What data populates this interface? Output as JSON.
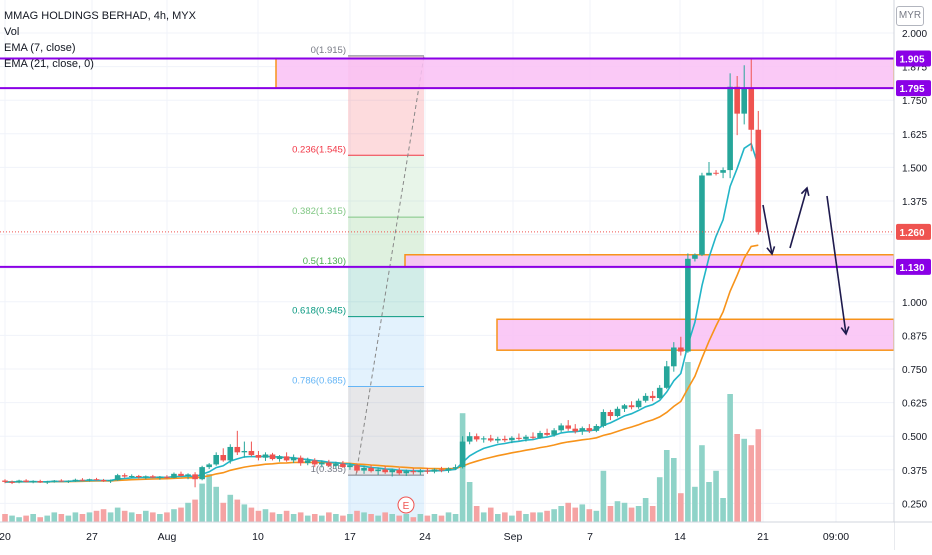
{
  "legend": {
    "title": "MMAG HOLDINGS BERHAD, 4h, MYX",
    "vol": "Vol",
    "ema7": "EMA (7, close)",
    "ema21": "EMA (21, close, 0)"
  },
  "currency": "MYR",
  "colors": {
    "up": "#26a69a",
    "down": "#ef5350",
    "up_vol": "#8fd3c8",
    "down_vol": "#f5a3a3",
    "ema7": "#22b5c7",
    "ema21": "#f7931a",
    "level_line": "#8a00e6",
    "zone_fill": "#f9c0f5",
    "zone_border": "#f7931a",
    "arrow": "#1e1a4d"
  },
  "chart_data": {
    "type": "candlestick",
    "symbol": "MMAG HOLDINGS BERHAD",
    "interval": "4h",
    "exchange": "MYX",
    "currency": "MYR",
    "y_ticks": [
      "2.000",
      "1.875",
      "1.750",
      "1.625",
      "1.500",
      "1.375",
      "1.250",
      "1.125",
      "1.000",
      "0.875",
      "0.750",
      "0.625",
      "0.500",
      "0.375",
      "0.250"
    ],
    "x_ticks": [
      "20",
      "27",
      "Aug",
      "10",
      "17",
      "24",
      "Sep",
      "7",
      "14",
      "21",
      "09:00"
    ],
    "price_labels": [
      "1.905",
      "1.795",
      "1.260",
      "1.130"
    ],
    "fib_levels": [
      {
        "label": "0(1.915)",
        "price": 1.915,
        "color": "#787b86"
      },
      {
        "label": "0.236(1.545)",
        "price": 1.545,
        "color": "#f23645"
      },
      {
        "label": "0.382(1.315)",
        "price": 1.315,
        "color": "#81c784"
      },
      {
        "label": "0.5(1.130)",
        "price": 1.13,
        "color": "#4caf50"
      },
      {
        "label": "0.618(0.945)",
        "price": 0.945,
        "color": "#089981"
      },
      {
        "label": "0.786(0.685)",
        "price": 0.685,
        "color": "#64b5f6"
      },
      {
        "label": "1(0.355)",
        "price": 0.355,
        "color": "#787b86"
      }
    ],
    "horizontal_levels": [
      1.905,
      1.795,
      1.13
    ],
    "zones": [
      {
        "top": 1.905,
        "bottom": 1.795
      },
      {
        "top": 1.175,
        "bottom": 1.13
      },
      {
        "top": 0.935,
        "bottom": 0.82
      }
    ],
    "event_marker": "E",
    "candles": [
      [
        0.335,
        0.34,
        0.325,
        0.33
      ],
      [
        0.33,
        0.335,
        0.322,
        0.328
      ],
      [
        0.328,
        0.338,
        0.325,
        0.335
      ],
      [
        0.335,
        0.34,
        0.328,
        0.33
      ],
      [
        0.33,
        0.336,
        0.325,
        0.333
      ],
      [
        0.333,
        0.338,
        0.326,
        0.328
      ],
      [
        0.328,
        0.334,
        0.322,
        0.331
      ],
      [
        0.331,
        0.337,
        0.327,
        0.335
      ],
      [
        0.335,
        0.34,
        0.33,
        0.332
      ],
      [
        0.332,
        0.336,
        0.326,
        0.334
      ],
      [
        0.334,
        0.342,
        0.33,
        0.338
      ],
      [
        0.338,
        0.344,
        0.333,
        0.336
      ],
      [
        0.336,
        0.342,
        0.331,
        0.34
      ],
      [
        0.34,
        0.345,
        0.335,
        0.337
      ],
      [
        0.337,
        0.341,
        0.33,
        0.333
      ],
      [
        0.333,
        0.339,
        0.326,
        0.336
      ],
      [
        0.336,
        0.36,
        0.334,
        0.355
      ],
      [
        0.355,
        0.362,
        0.345,
        0.35
      ],
      [
        0.35,
        0.358,
        0.344,
        0.352
      ],
      [
        0.352,
        0.356,
        0.342,
        0.348
      ],
      [
        0.348,
        0.354,
        0.34,
        0.351
      ],
      [
        0.351,
        0.356,
        0.344,
        0.346
      ],
      [
        0.346,
        0.352,
        0.338,
        0.349
      ],
      [
        0.349,
        0.355,
        0.342,
        0.345
      ],
      [
        0.345,
        0.365,
        0.343,
        0.36
      ],
      [
        0.36,
        0.368,
        0.35,
        0.352
      ],
      [
        0.352,
        0.362,
        0.34,
        0.358
      ],
      [
        0.358,
        0.366,
        0.31,
        0.34
      ],
      [
        0.34,
        0.39,
        0.336,
        0.385
      ],
      [
        0.385,
        0.4,
        0.378,
        0.395
      ],
      [
        0.395,
        0.44,
        0.39,
        0.43
      ],
      [
        0.43,
        0.455,
        0.405,
        0.41
      ],
      [
        0.41,
        0.47,
        0.398,
        0.46
      ],
      [
        0.46,
        0.52,
        0.43,
        0.44
      ],
      [
        0.44,
        0.48,
        0.42,
        0.445
      ],
      [
        0.445,
        0.48,
        0.425,
        0.43
      ],
      [
        0.43,
        0.445,
        0.41,
        0.42
      ],
      [
        0.42,
        0.44,
        0.408,
        0.432
      ],
      [
        0.432,
        0.438,
        0.41,
        0.415
      ],
      [
        0.415,
        0.43,
        0.405,
        0.425
      ],
      [
        0.425,
        0.44,
        0.405,
        0.41
      ],
      [
        0.41,
        0.432,
        0.4,
        0.42
      ],
      [
        0.42,
        0.428,
        0.39,
        0.4
      ],
      [
        0.4,
        0.42,
        0.392,
        0.41
      ],
      [
        0.41,
        0.418,
        0.385,
        0.395
      ],
      [
        0.395,
        0.41,
        0.384,
        0.402
      ],
      [
        0.402,
        0.412,
        0.386,
        0.39
      ],
      [
        0.39,
        0.405,
        0.38,
        0.398
      ],
      [
        0.398,
        0.408,
        0.382,
        0.385
      ],
      [
        0.385,
        0.4,
        0.375,
        0.392
      ],
      [
        0.392,
        0.398,
        0.365,
        0.372
      ],
      [
        0.372,
        0.39,
        0.36,
        0.382
      ],
      [
        0.382,
        0.392,
        0.365,
        0.37
      ],
      [
        0.37,
        0.384,
        0.356,
        0.376
      ],
      [
        0.376,
        0.388,
        0.36,
        0.366
      ],
      [
        0.366,
        0.38,
        0.35,
        0.374
      ],
      [
        0.374,
        0.382,
        0.356,
        0.362
      ],
      [
        0.362,
        0.376,
        0.352,
        0.37
      ],
      [
        0.37,
        0.38,
        0.358,
        0.366
      ],
      [
        0.366,
        0.378,
        0.356,
        0.372
      ],
      [
        0.372,
        0.382,
        0.36,
        0.368
      ],
      [
        0.368,
        0.38,
        0.362,
        0.376
      ],
      [
        0.376,
        0.386,
        0.366,
        0.372
      ],
      [
        0.372,
        0.384,
        0.364,
        0.38
      ],
      [
        0.38,
        0.395,
        0.375,
        0.385
      ],
      [
        0.385,
        0.5,
        0.38,
        0.48
      ],
      [
        0.48,
        0.515,
        0.47,
        0.5
      ],
      [
        0.5,
        0.51,
        0.48,
        0.488
      ],
      [
        0.488,
        0.5,
        0.476,
        0.492
      ],
      [
        0.492,
        0.505,
        0.478,
        0.484
      ],
      [
        0.484,
        0.498,
        0.474,
        0.49
      ],
      [
        0.49,
        0.502,
        0.478,
        0.485
      ],
      [
        0.485,
        0.5,
        0.474,
        0.494
      ],
      [
        0.494,
        0.51,
        0.484,
        0.49
      ],
      [
        0.49,
        0.505,
        0.48,
        0.498
      ],
      [
        0.498,
        0.514,
        0.488,
        0.494
      ],
      [
        0.494,
        0.52,
        0.49,
        0.512
      ],
      [
        0.512,
        0.528,
        0.5,
        0.505
      ],
      [
        0.505,
        0.53,
        0.498,
        0.522
      ],
      [
        0.522,
        0.548,
        0.515,
        0.54
      ],
      [
        0.54,
        0.56,
        0.52,
        0.528
      ],
      [
        0.528,
        0.545,
        0.51,
        0.518
      ],
      [
        0.518,
        0.536,
        0.505,
        0.53
      ],
      [
        0.53,
        0.545,
        0.512,
        0.52
      ],
      [
        0.52,
        0.545,
        0.515,
        0.538
      ],
      [
        0.538,
        0.6,
        0.532,
        0.59
      ],
      [
        0.59,
        0.598,
        0.56,
        0.575
      ],
      [
        0.575,
        0.61,
        0.57,
        0.602
      ],
      [
        0.602,
        0.62,
        0.59,
        0.615
      ],
      [
        0.615,
        0.63,
        0.6,
        0.608
      ],
      [
        0.608,
        0.64,
        0.602,
        0.632
      ],
      [
        0.632,
        0.66,
        0.625,
        0.65
      ],
      [
        0.65,
        0.668,
        0.63,
        0.642
      ],
      [
        0.642,
        0.69,
        0.638,
        0.68
      ],
      [
        0.68,
        0.78,
        0.675,
        0.76
      ],
      [
        0.76,
        0.85,
        0.74,
        0.83
      ],
      [
        0.83,
        0.87,
        0.8,
        0.815
      ],
      [
        0.815,
        1.18,
        0.81,
        1.16
      ],
      [
        1.16,
        1.18,
        1.15,
        1.175
      ],
      [
        1.175,
        1.48,
        1.17,
        1.47
      ],
      [
        1.47,
        1.52,
        1.47,
        1.48
      ],
      [
        1.48,
        1.49,
        1.47,
        1.478
      ],
      [
        1.48,
        1.5,
        1.46,
        1.49
      ],
      [
        1.49,
        1.85,
        1.46,
        1.8
      ],
      [
        1.8,
        1.84,
        1.62,
        1.7
      ],
      [
        1.7,
        1.88,
        1.66,
        1.795
      ],
      [
        1.795,
        1.905,
        1.56,
        1.64
      ],
      [
        1.64,
        1.71,
        1.25,
        1.26
      ]
    ],
    "volume": [
      [
        0.05,
        "down"
      ],
      [
        0.04,
        "up"
      ],
      [
        0.03,
        "up"
      ],
      [
        0.04,
        "down"
      ],
      [
        0.05,
        "up"
      ],
      [
        0.03,
        "down"
      ],
      [
        0.04,
        "up"
      ],
      [
        0.06,
        "up"
      ],
      [
        0.05,
        "down"
      ],
      [
        0.04,
        "up"
      ],
      [
        0.06,
        "up"
      ],
      [
        0.05,
        "down"
      ],
      [
        0.06,
        "up"
      ],
      [
        0.07,
        "down"
      ],
      [
        0.08,
        "down"
      ],
      [
        0.06,
        "up"
      ],
      [
        0.09,
        "up"
      ],
      [
        0.07,
        "down"
      ],
      [
        0.06,
        "up"
      ],
      [
        0.05,
        "down"
      ],
      [
        0.07,
        "up"
      ],
      [
        0.06,
        "down"
      ],
      [
        0.05,
        "up"
      ],
      [
        0.06,
        "down"
      ],
      [
        0.08,
        "up"
      ],
      [
        0.09,
        "down"
      ],
      [
        0.12,
        "up"
      ],
      [
        0.14,
        "down"
      ],
      [
        0.24,
        "up"
      ],
      [
        0.3,
        "up"
      ],
      [
        0.22,
        "up"
      ],
      [
        0.12,
        "down"
      ],
      [
        0.17,
        "up"
      ],
      [
        0.14,
        "down"
      ],
      [
        0.11,
        "up"
      ],
      [
        0.09,
        "down"
      ],
      [
        0.07,
        "down"
      ],
      [
        0.08,
        "up"
      ],
      [
        0.06,
        "down"
      ],
      [
        0.05,
        "up"
      ],
      [
        0.07,
        "down"
      ],
      [
        0.05,
        "up"
      ],
      [
        0.06,
        "down"
      ],
      [
        0.04,
        "up"
      ],
      [
        0.05,
        "down"
      ],
      [
        0.04,
        "up"
      ],
      [
        0.06,
        "down"
      ],
      [
        0.05,
        "up"
      ],
      [
        0.04,
        "down"
      ],
      [
        0.05,
        "up"
      ],
      [
        0.07,
        "down"
      ],
      [
        0.06,
        "up"
      ],
      [
        0.05,
        "down"
      ],
      [
        0.04,
        "up"
      ],
      [
        0.06,
        "down"
      ],
      [
        0.05,
        "up"
      ],
      [
        0.04,
        "down"
      ],
      [
        0.05,
        "up"
      ],
      [
        0.03,
        "down"
      ],
      [
        0.05,
        "up"
      ],
      [
        0.04,
        "down"
      ],
      [
        0.05,
        "up"
      ],
      [
        0.04,
        "down"
      ],
      [
        0.06,
        "up"
      ],
      [
        0.05,
        "up"
      ],
      [
        0.68,
        "up"
      ],
      [
        0.25,
        "up"
      ],
      [
        0.1,
        "down"
      ],
      [
        0.06,
        "up"
      ],
      [
        0.09,
        "down"
      ],
      [
        0.05,
        "up"
      ],
      [
        0.06,
        "down"
      ],
      [
        0.04,
        "up"
      ],
      [
        0.07,
        "down"
      ],
      [
        0.05,
        "up"
      ],
      [
        0.06,
        "down"
      ],
      [
        0.06,
        "up"
      ],
      [
        0.07,
        "down"
      ],
      [
        0.08,
        "up"
      ],
      [
        0.1,
        "up"
      ],
      [
        0.12,
        "down"
      ],
      [
        0.09,
        "down"
      ],
      [
        0.11,
        "up"
      ],
      [
        0.08,
        "down"
      ],
      [
        0.07,
        "up"
      ],
      [
        0.32,
        "up"
      ],
      [
        0.1,
        "down"
      ],
      [
        0.13,
        "up"
      ],
      [
        0.12,
        "up"
      ],
      [
        0.09,
        "down"
      ],
      [
        0.1,
        "up"
      ],
      [
        0.15,
        "up"
      ],
      [
        0.1,
        "down"
      ],
      [
        0.28,
        "up"
      ],
      [
        0.45,
        "up"
      ],
      [
        0.4,
        "up"
      ],
      [
        0.18,
        "down"
      ],
      [
        1.0,
        "up"
      ],
      [
        0.22,
        "up"
      ],
      [
        0.48,
        "up"
      ],
      [
        0.25,
        "up"
      ],
      [
        0.32,
        "up"
      ],
      [
        0.15,
        "up"
      ],
      [
        0.8,
        "up"
      ],
      [
        0.55,
        "down"
      ],
      [
        0.52,
        "up"
      ],
      [
        0.48,
        "down"
      ],
      [
        0.58,
        "down"
      ]
    ]
  }
}
